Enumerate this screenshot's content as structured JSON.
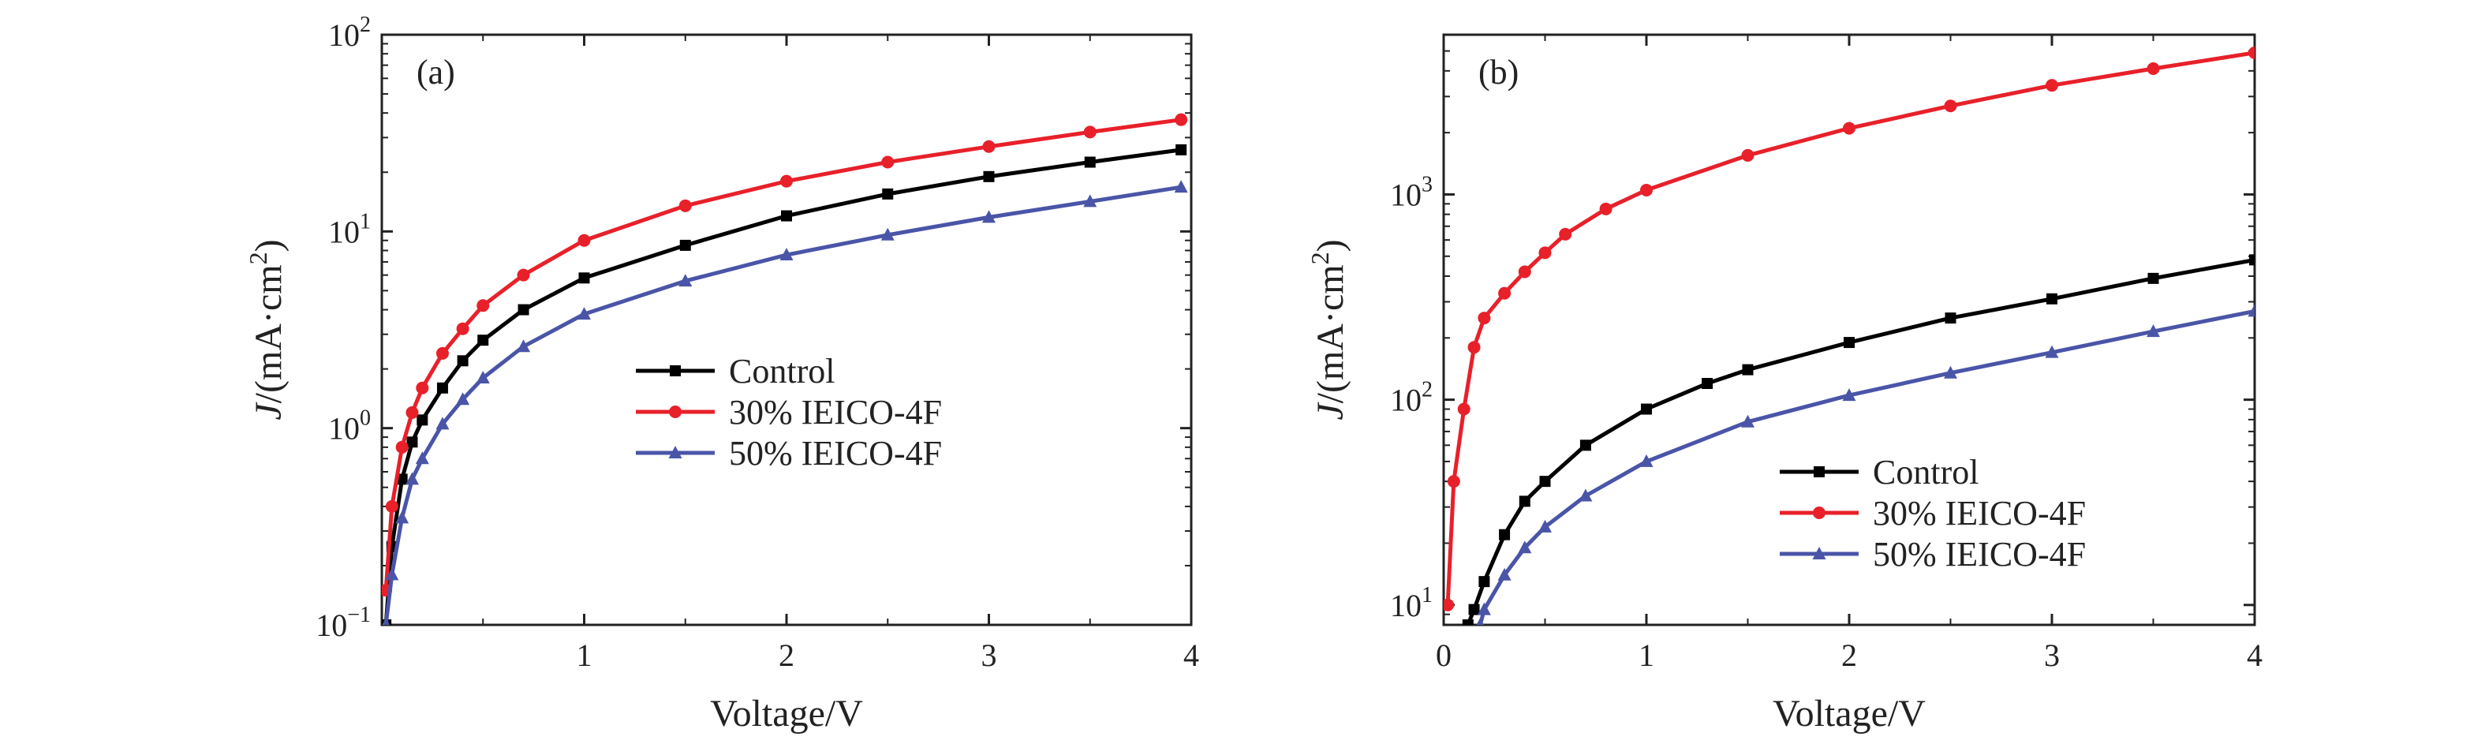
{
  "chart_data": [
    {
      "type": "line",
      "panel_label": "(a)",
      "xlabel": "Voltage/V",
      "ylabel": {
        "italic": "J",
        "main": "/(mA·cm",
        "sup": "2",
        "close": ")"
      },
      "xlim": [
        0,
        4
      ],
      "ylim": [
        0.1,
        100
      ],
      "yscale": "log",
      "x_ticks": [
        "1",
        "2",
        "3",
        "4"
      ],
      "y_ticks": [
        {
          "base": "10",
          "exp": "−1"
        },
        {
          "base": "10",
          "exp": "0"
        },
        {
          "base": "10",
          "exp": "1"
        },
        {
          "base": "10",
          "exp": "2"
        }
      ],
      "legend_position": "center",
      "series": [
        {
          "name": "Control",
          "color": "#000000",
          "marker": "square",
          "x": [
            0.02,
            0.05,
            0.1,
            0.15,
            0.2,
            0.3,
            0.4,
            0.5,
            0.7,
            1.0,
            1.5,
            2.0,
            2.5,
            3.0,
            3.5,
            3.95
          ],
          "y": [
            0.1,
            0.25,
            0.55,
            0.85,
            1.1,
            1.6,
            2.2,
            2.8,
            4.0,
            5.8,
            8.5,
            12,
            15.5,
            19,
            22.5,
            26
          ]
        },
        {
          "name": "30% IEICO-4F",
          "color": "#e8202a",
          "marker": "circle",
          "x": [
            0.02,
            0.05,
            0.1,
            0.15,
            0.2,
            0.3,
            0.4,
            0.5,
            0.7,
            1.0,
            1.5,
            2.0,
            2.5,
            3.0,
            3.5,
            3.95
          ],
          "y": [
            0.15,
            0.4,
            0.8,
            1.2,
            1.6,
            2.4,
            3.2,
            4.2,
            6.0,
            9.0,
            13.5,
            18,
            22.5,
            27,
            32,
            37
          ]
        },
        {
          "name": "50% IEICO-4F",
          "color": "#4a55a8",
          "marker": "triangle",
          "x": [
            0.02,
            0.05,
            0.1,
            0.15,
            0.2,
            0.3,
            0.4,
            0.5,
            0.7,
            1.0,
            1.5,
            2.0,
            2.5,
            3.0,
            3.5,
            3.95
          ],
          "y": [
            0.1,
            0.18,
            0.35,
            0.55,
            0.7,
            1.05,
            1.4,
            1.8,
            2.6,
            3.8,
            5.6,
            7.6,
            9.6,
            11.8,
            14.2,
            16.8
          ]
        }
      ]
    },
    {
      "type": "line",
      "panel_label": "(b)",
      "xlabel": "Voltage/V",
      "ylabel": {
        "italic": "J",
        "main": "/(mA·cm",
        "sup": "2",
        "close": ")"
      },
      "xlim": [
        0,
        4
      ],
      "ylim": [
        8,
        6000
      ],
      "yscale": "log",
      "x_ticks": [
        "0",
        "1",
        "2",
        "3",
        "4"
      ],
      "y_ticks": [
        {
          "base": "10",
          "exp": "1"
        },
        {
          "base": "10",
          "exp": "2"
        },
        {
          "base": "10",
          "exp": "3"
        }
      ],
      "legend_position": "bottom-right",
      "series": [
        {
          "name": "Control",
          "color": "#000000",
          "marker": "square",
          "x": [
            0.12,
            0.15,
            0.2,
            0.3,
            0.4,
            0.5,
            0.7,
            1.0,
            1.3,
            1.5,
            2.0,
            2.5,
            3.0,
            3.5,
            4.0
          ],
          "y": [
            8,
            9.5,
            13,
            22,
            32,
            40,
            60,
            90,
            120,
            140,
            190,
            250,
            310,
            390,
            480
          ]
        },
        {
          "name": "30% IEICO-4F",
          "color": "#e8202a",
          "marker": "circle",
          "x": [
            0.02,
            0.05,
            0.1,
            0.15,
            0.2,
            0.3,
            0.4,
            0.5,
            0.6,
            0.8,
            1.0,
            1.5,
            2.0,
            2.5,
            3.0,
            3.5,
            4.0
          ],
          "y": [
            10,
            40,
            90,
            180,
            250,
            330,
            420,
            520,
            640,
            850,
            1050,
            1550,
            2100,
            2700,
            3400,
            4100,
            4900
          ]
        },
        {
          "name": "50% IEICO-4F",
          "color": "#4a55a8",
          "marker": "triangle",
          "x": [
            0.18,
            0.2,
            0.3,
            0.4,
            0.5,
            0.7,
            1.0,
            1.5,
            2.0,
            2.5,
            3.0,
            3.5,
            4.0
          ],
          "y": [
            8,
            9.5,
            14,
            19,
            24,
            34,
            50,
            78,
            105,
            135,
            170,
            215,
            270
          ]
        }
      ]
    }
  ]
}
